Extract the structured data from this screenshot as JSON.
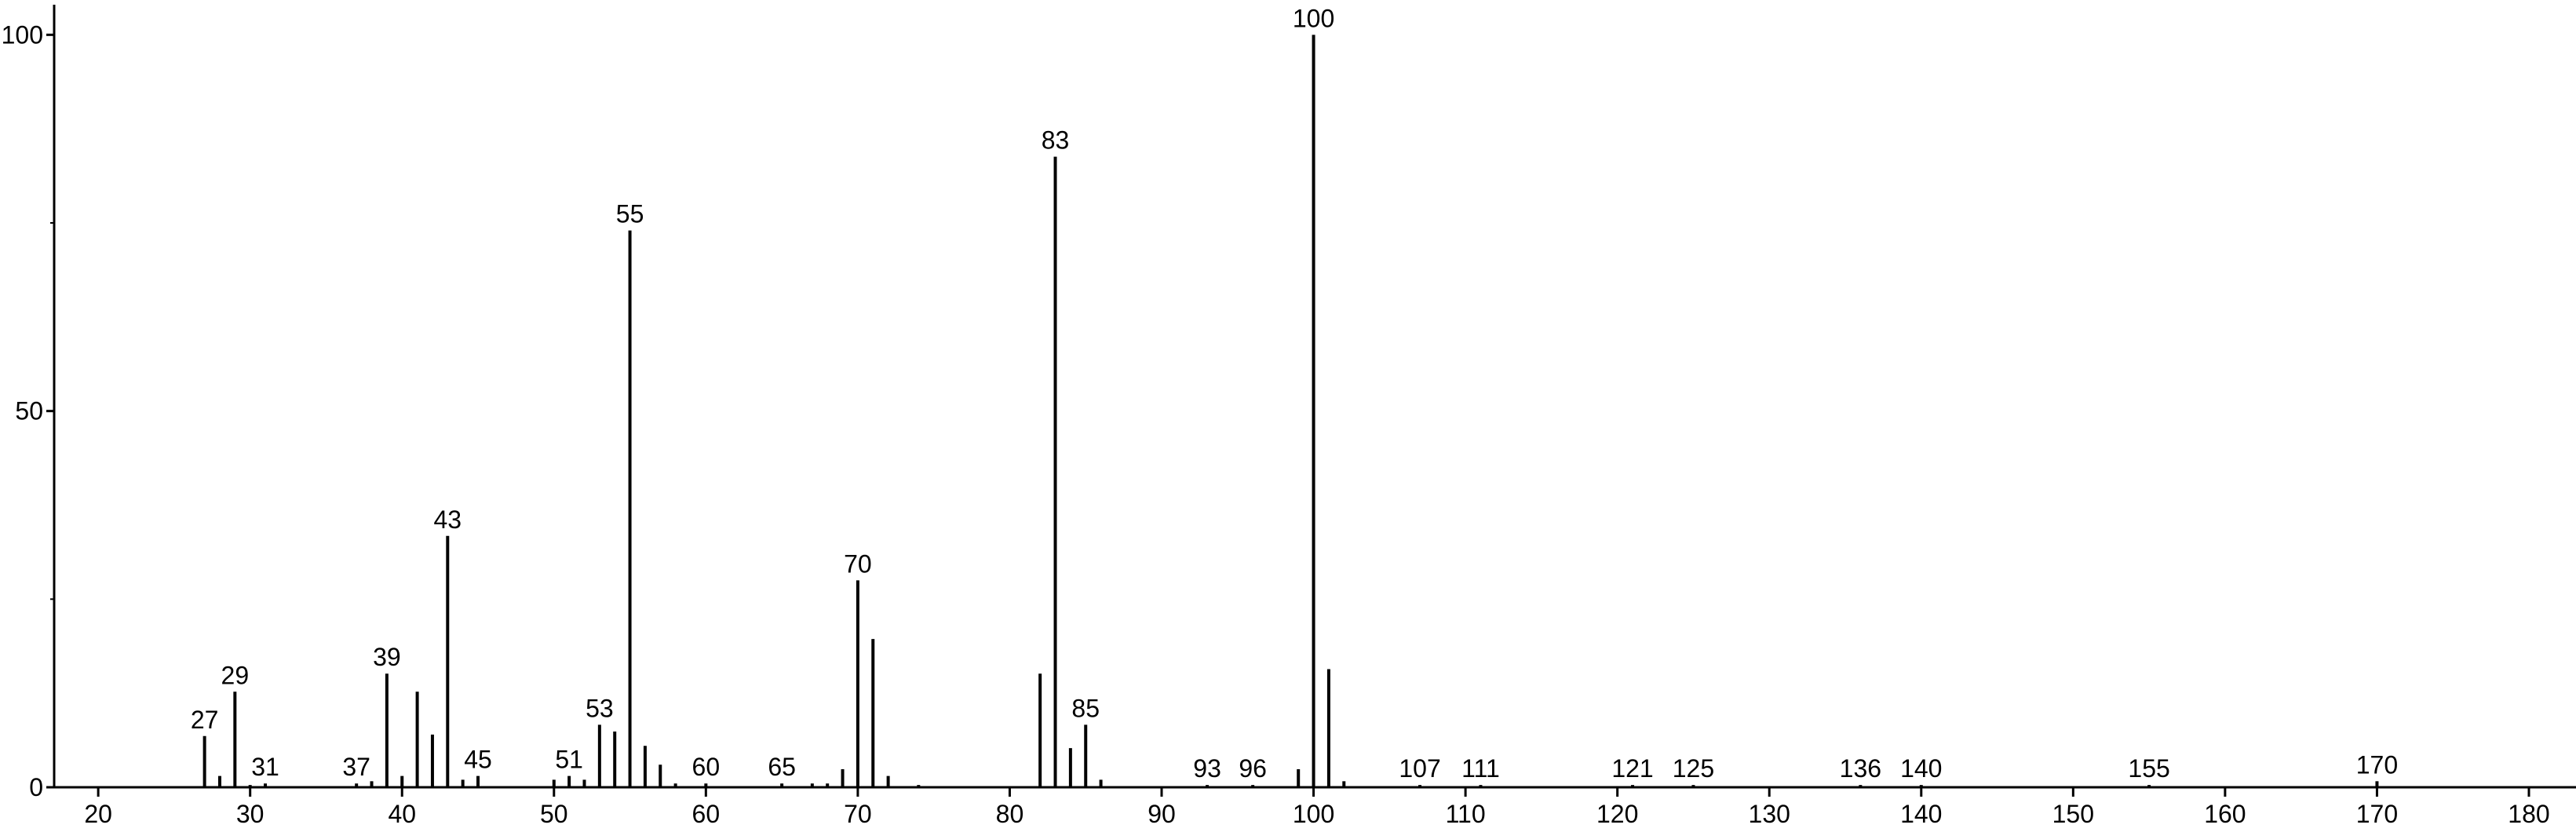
{
  "chart_data": {
    "type": "stem",
    "x": [
      27,
      28,
      29,
      30,
      31,
      37,
      38,
      39,
      40,
      41,
      42,
      43,
      44,
      45,
      50,
      51,
      52,
      53,
      54,
      55,
      56,
      57,
      58,
      60,
      65,
      67,
      68,
      69,
      70,
      71,
      72,
      74,
      82,
      83,
      84,
      85,
      86,
      93,
      96,
      99,
      100,
      101,
      102,
      107,
      111,
      121,
      125,
      136,
      140,
      155,
      170
    ],
    "values": [
      6.8,
      1.5,
      12.7,
      0.3,
      0.5,
      0.5,
      0.8,
      15.1,
      1.5,
      12.7,
      7,
      33.4,
      1,
      1.5,
      1,
      1.5,
      1,
      8.3,
      7.4,
      74,
      5.5,
      3,
      0.5,
      0.5,
      0.5,
      0.5,
      0.5,
      2.4,
      27.5,
      19.7,
      1.5,
      0.3,
      15.1,
      83.8,
      5.2,
      8.3,
      1,
      0.3,
      0.3,
      2.4,
      100,
      15.7,
      0.8,
      0.3,
      0.3,
      0.3,
      0.3,
      0.3,
      0.3,
      0.3,
      0.8
    ],
    "annotations": [
      27,
      29,
      31,
      37,
      39,
      43,
      45,
      51,
      53,
      55,
      60,
      65,
      70,
      83,
      85,
      93,
      96,
      100,
      107,
      111,
      121,
      125,
      136,
      140,
      155,
      170
    ],
    "color": "#000000",
    "xlim": [
      17.1,
      183.1
    ],
    "xticks": [
      20,
      30,
      40,
      50,
      60,
      70,
      80,
      90,
      100,
      110,
      120,
      130,
      140,
      150,
      160,
      170,
      180
    ],
    "ylim": [
      0,
      104
    ],
    "yticks": [
      0,
      50,
      100
    ],
    "yminorticks": [
      25,
      75
    ]
  }
}
